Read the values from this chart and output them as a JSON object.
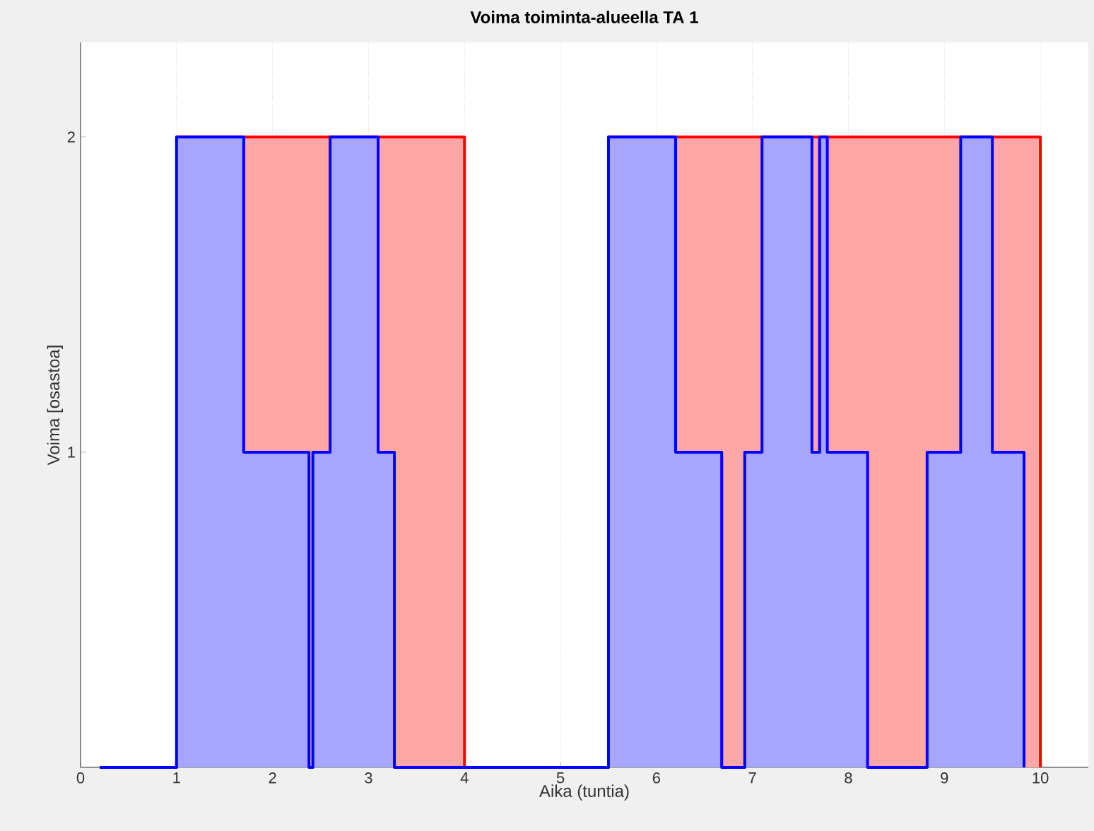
{
  "chart_data": {
    "type": "area",
    "title": "Voima toiminta-alueella TA 1",
    "xlabel": "Aika (tuntia)",
    "ylabel": "Voima [osastoa]",
    "xlim": [
      0,
      10.5
    ],
    "ylim": [
      0,
      2.3
    ],
    "xticks": [
      0,
      1,
      2,
      3,
      4,
      5,
      6,
      7,
      8,
      9,
      10
    ],
    "yticks": [
      1,
      2
    ],
    "grid": "x",
    "series": [
      {
        "color": "#ff0000",
        "x": [
          0.2,
          1,
          1,
          4,
          4,
          5.5,
          5.5,
          10,
          10
        ],
        "values": [
          0,
          0,
          2,
          2,
          0,
          0,
          2,
          2,
          0
        ]
      },
      {
        "color": "#0000ff",
        "x": [
          0.2,
          1,
          1,
          1.7,
          1.7,
          2.38,
          2.38,
          2.42,
          2.42,
          2.6,
          2.6,
          3.1,
          3.1,
          3.27,
          3.27,
          5.5,
          5.5,
          6.2,
          6.2,
          6.68,
          6.68,
          6.92,
          6.92,
          7.1,
          7.1,
          7.62,
          7.62,
          7.7,
          7.7,
          7.78,
          7.78,
          8.2,
          8.2,
          8.82,
          8.82,
          9.17,
          9.17,
          9.5,
          9.5,
          9.83,
          9.83
        ],
        "values": [
          0,
          0,
          2,
          2,
          1,
          1,
          0,
          0,
          1,
          1,
          2,
          2,
          1,
          1,
          0,
          0,
          2,
          2,
          1,
          1,
          0,
          0,
          1,
          1,
          2,
          2,
          1,
          1,
          2,
          2,
          1,
          1,
          0,
          0,
          1,
          1,
          2,
          2,
          1,
          1,
          0
        ]
      }
    ]
  }
}
